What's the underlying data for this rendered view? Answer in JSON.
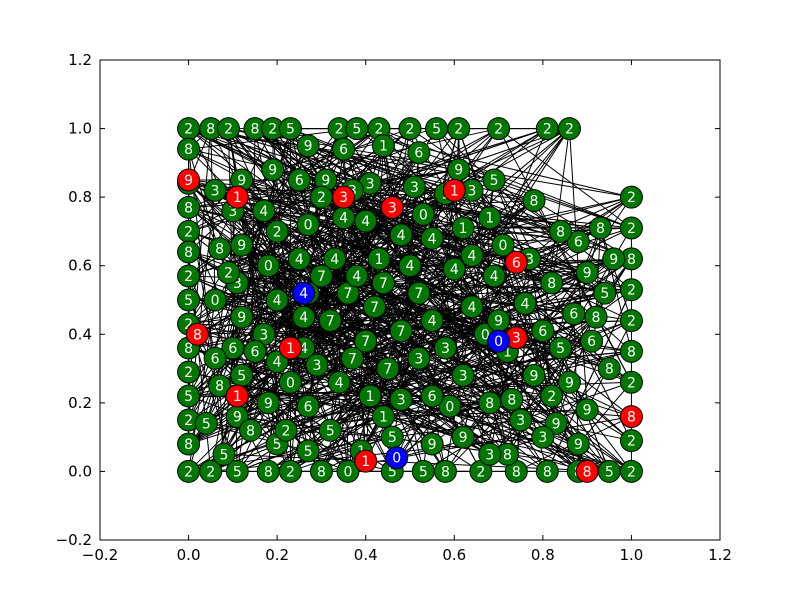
{
  "chart_data": {
    "type": "scatter",
    "subtype": "network-graph",
    "title": "",
    "xlabel": "",
    "ylabel": "",
    "xlim": [
      -0.2,
      1.2
    ],
    "ylim": [
      -0.2,
      1.2
    ],
    "x_ticks": [
      "−0.2",
      "0.0",
      "0.2",
      "0.4",
      "0.6",
      "0.8",
      "1.0",
      "1.2"
    ],
    "y_ticks": [
      "−0.2",
      "0.0",
      "0.2",
      "0.4",
      "0.6",
      "0.8",
      "1.0",
      "1.2"
    ],
    "grid": false,
    "legend": "none",
    "colors": {
      "node_default": "#007700",
      "node_red": "#ff0000",
      "node_blue": "#0000ff",
      "edge": "#000000",
      "label": "#ffffff"
    },
    "series": [
      {
        "color": "#007700",
        "points": [
          {
            "x": 0.0,
            "y": 1.0,
            "label": "2"
          },
          {
            "x": 0.05,
            "y": 1.0,
            "label": "8"
          },
          {
            "x": 0.09,
            "y": 1.0,
            "label": "2"
          },
          {
            "x": 0.15,
            "y": 1.0,
            "label": "8"
          },
          {
            "x": 0.19,
            "y": 1.0,
            "label": "2"
          },
          {
            "x": 0.23,
            "y": 1.0,
            "label": "5"
          },
          {
            "x": 0.34,
            "y": 1.0,
            "label": "2"
          },
          {
            "x": 0.38,
            "y": 1.0,
            "label": "5"
          },
          {
            "x": 0.43,
            "y": 1.0,
            "label": "2"
          },
          {
            "x": 0.5,
            "y": 1.0,
            "label": "2"
          },
          {
            "x": 0.56,
            "y": 1.0,
            "label": "5"
          },
          {
            "x": 0.61,
            "y": 1.0,
            "label": "2"
          },
          {
            "x": 0.7,
            "y": 1.0,
            "label": "2"
          },
          {
            "x": 0.81,
            "y": 1.0,
            "label": "2"
          },
          {
            "x": 0.86,
            "y": 1.0,
            "label": "2"
          },
          {
            "x": 0.0,
            "y": 0.94,
            "label": "8"
          },
          {
            "x": 0.0,
            "y": 0.84,
            "label": "5"
          },
          {
            "x": 0.0,
            "y": 0.77,
            "label": "8"
          },
          {
            "x": 0.0,
            "y": 0.7,
            "label": "2"
          },
          {
            "x": 0.0,
            "y": 0.64,
            "label": "8"
          },
          {
            "x": 0.0,
            "y": 0.57,
            "label": "2"
          },
          {
            "x": 0.0,
            "y": 0.5,
            "label": "5"
          },
          {
            "x": 0.0,
            "y": 0.43,
            "label": "2"
          },
          {
            "x": 0.0,
            "y": 0.36,
            "label": "8"
          },
          {
            "x": 0.0,
            "y": 0.29,
            "label": "2"
          },
          {
            "x": 0.0,
            "y": 0.22,
            "label": "5"
          },
          {
            "x": 0.0,
            "y": 0.15,
            "label": "2"
          },
          {
            "x": 0.0,
            "y": 0.08,
            "label": "8"
          },
          {
            "x": 0.0,
            "y": 0.0,
            "label": "2"
          },
          {
            "x": 0.05,
            "y": 0.0,
            "label": "2"
          },
          {
            "x": 0.11,
            "y": 0.0,
            "label": "5"
          },
          {
            "x": 0.18,
            "y": 0.0,
            "label": "8"
          },
          {
            "x": 0.23,
            "y": 0.0,
            "label": "2"
          },
          {
            "x": 0.3,
            "y": 0.0,
            "label": "8"
          },
          {
            "x": 0.36,
            "y": 0.0,
            "label": "0"
          },
          {
            "x": 0.46,
            "y": 0.0,
            "label": "5"
          },
          {
            "x": 0.53,
            "y": 0.0,
            "label": "5"
          },
          {
            "x": 0.58,
            "y": 0.0,
            "label": "8"
          },
          {
            "x": 0.66,
            "y": 0.0,
            "label": "2"
          },
          {
            "x": 0.74,
            "y": 0.0,
            "label": "8"
          },
          {
            "x": 0.81,
            "y": 0.0,
            "label": "8"
          },
          {
            "x": 0.88,
            "y": 0.0,
            "label": "8"
          },
          {
            "x": 0.95,
            "y": 0.0,
            "label": "5"
          },
          {
            "x": 1.0,
            "y": 0.0,
            "label": "2"
          },
          {
            "x": 1.0,
            "y": 0.8,
            "label": "2"
          },
          {
            "x": 1.0,
            "y": 0.71,
            "label": "2"
          },
          {
            "x": 1.0,
            "y": 0.62,
            "label": "8"
          },
          {
            "x": 1.0,
            "y": 0.53,
            "label": "2"
          },
          {
            "x": 1.0,
            "y": 0.44,
            "label": "2"
          },
          {
            "x": 1.0,
            "y": 0.35,
            "label": "8"
          },
          {
            "x": 1.0,
            "y": 0.26,
            "label": "2"
          },
          {
            "x": 1.0,
            "y": 0.09,
            "label": "2"
          },
          {
            "x": 0.93,
            "y": 0.71,
            "label": "8"
          },
          {
            "x": 0.88,
            "y": 0.67,
            "label": "6"
          },
          {
            "x": 0.84,
            "y": 0.7,
            "label": "8"
          },
          {
            "x": 0.9,
            "y": 0.58,
            "label": "9"
          },
          {
            "x": 0.94,
            "y": 0.52,
            "label": "5"
          },
          {
            "x": 0.87,
            "y": 0.46,
            "label": "6"
          },
          {
            "x": 0.91,
            "y": 0.38,
            "label": "6"
          },
          {
            "x": 0.95,
            "y": 0.3,
            "label": "8"
          },
          {
            "x": 0.86,
            "y": 0.26,
            "label": "9"
          },
          {
            "x": 0.9,
            "y": 0.18,
            "label": "9"
          },
          {
            "x": 0.83,
            "y": 0.14,
            "label": "9"
          },
          {
            "x": 0.88,
            "y": 0.08,
            "label": "9"
          },
          {
            "x": 0.78,
            "y": 0.79,
            "label": "8"
          },
          {
            "x": 0.77,
            "y": 0.62,
            "label": "3"
          },
          {
            "x": 0.82,
            "y": 0.55,
            "label": "8"
          },
          {
            "x": 0.76,
            "y": 0.49,
            "label": "4"
          },
          {
            "x": 0.8,
            "y": 0.41,
            "label": "6"
          },
          {
            "x": 0.72,
            "y": 0.35,
            "label": "1"
          },
          {
            "x": 0.78,
            "y": 0.28,
            "label": "9"
          },
          {
            "x": 0.73,
            "y": 0.21,
            "label": "8"
          },
          {
            "x": 0.8,
            "y": 0.1,
            "label": "3"
          },
          {
            "x": 0.72,
            "y": 0.05,
            "label": "8"
          },
          {
            "x": 0.69,
            "y": 0.85,
            "label": "5"
          },
          {
            "x": 0.68,
            "y": 0.74,
            "label": "1"
          },
          {
            "x": 0.69,
            "y": 0.57,
            "label": "4"
          },
          {
            "x": 0.64,
            "y": 0.48,
            "label": "4"
          },
          {
            "x": 0.67,
            "y": 0.4,
            "label": "0"
          },
          {
            "x": 0.68,
            "y": 0.2,
            "label": "8"
          },
          {
            "x": 0.68,
            "y": 0.05,
            "label": "3"
          },
          {
            "x": 0.61,
            "y": 0.88,
            "label": "9"
          },
          {
            "x": 0.62,
            "y": 0.71,
            "label": "1"
          },
          {
            "x": 0.6,
            "y": 0.59,
            "label": "4"
          },
          {
            "x": 0.55,
            "y": 0.68,
            "label": "4"
          },
          {
            "x": 0.58,
            "y": 0.36,
            "label": "3"
          },
          {
            "x": 0.62,
            "y": 0.28,
            "label": "3"
          },
          {
            "x": 0.59,
            "y": 0.19,
            "label": "0"
          },
          {
            "x": 0.62,
            "y": 0.1,
            "label": "9"
          },
          {
            "x": 0.52,
            "y": 0.93,
            "label": "6"
          },
          {
            "x": 0.51,
            "y": 0.83,
            "label": "3"
          },
          {
            "x": 0.53,
            "y": 0.75,
            "label": "0"
          },
          {
            "x": 0.48,
            "y": 0.69,
            "label": "4"
          },
          {
            "x": 0.52,
            "y": 0.52,
            "label": "7"
          },
          {
            "x": 0.48,
            "y": 0.41,
            "label": "7"
          },
          {
            "x": 0.52,
            "y": 0.33,
            "label": "3"
          },
          {
            "x": 0.48,
            "y": 0.21,
            "label": "3"
          },
          {
            "x": 0.46,
            "y": 0.1,
            "label": "5"
          },
          {
            "x": 0.44,
            "y": 0.95,
            "label": "1"
          },
          {
            "x": 0.41,
            "y": 0.84,
            "label": "3"
          },
          {
            "x": 0.4,
            "y": 0.73,
            "label": "4"
          },
          {
            "x": 0.43,
            "y": 0.62,
            "label": "1"
          },
          {
            "x": 0.42,
            "y": 0.48,
            "label": "7"
          },
          {
            "x": 0.4,
            "y": 0.38,
            "label": "7"
          },
          {
            "x": 0.41,
            "y": 0.22,
            "label": "1"
          },
          {
            "x": 0.39,
            "y": 0.06,
            "label": "1"
          },
          {
            "x": 0.35,
            "y": 0.94,
            "label": "6"
          },
          {
            "x": 0.31,
            "y": 0.85,
            "label": "9"
          },
          {
            "x": 0.35,
            "y": 0.74,
            "label": "4"
          },
          {
            "x": 0.33,
            "y": 0.62,
            "label": "4"
          },
          {
            "x": 0.36,
            "y": 0.52,
            "label": "7"
          },
          {
            "x": 0.32,
            "y": 0.44,
            "label": "7"
          },
          {
            "x": 0.34,
            "y": 0.26,
            "label": "4"
          },
          {
            "x": 0.32,
            "y": 0.12,
            "label": "5"
          },
          {
            "x": 0.27,
            "y": 0.95,
            "label": "9"
          },
          {
            "x": 0.25,
            "y": 0.85,
            "label": "6"
          },
          {
            "x": 0.27,
            "y": 0.72,
            "label": "0"
          },
          {
            "x": 0.25,
            "y": 0.62,
            "label": "4"
          },
          {
            "x": 0.27,
            "y": 0.52,
            "label": "1"
          },
          {
            "x": 0.26,
            "y": 0.45,
            "label": "4"
          },
          {
            "x": 0.26,
            "y": 0.36,
            "label": "4"
          },
          {
            "x": 0.27,
            "y": 0.19,
            "label": "6"
          },
          {
            "x": 0.27,
            "y": 0.06,
            "label": "5"
          },
          {
            "x": 0.19,
            "y": 0.88,
            "label": "9"
          },
          {
            "x": 0.17,
            "y": 0.76,
            "label": "4"
          },
          {
            "x": 0.2,
            "y": 0.7,
            "label": "2"
          },
          {
            "x": 0.18,
            "y": 0.6,
            "label": "0"
          },
          {
            "x": 0.2,
            "y": 0.5,
            "label": "4"
          },
          {
            "x": 0.17,
            "y": 0.4,
            "label": "3"
          },
          {
            "x": 0.2,
            "y": 0.32,
            "label": "4"
          },
          {
            "x": 0.18,
            "y": 0.2,
            "label": "9"
          },
          {
            "x": 0.2,
            "y": 0.08,
            "label": "5"
          },
          {
            "x": 0.12,
            "y": 0.85,
            "label": "9"
          },
          {
            "x": 0.1,
            "y": 0.76,
            "label": "3"
          },
          {
            "x": 0.12,
            "y": 0.66,
            "label": "9"
          },
          {
            "x": 0.11,
            "y": 0.55,
            "label": "3"
          },
          {
            "x": 0.12,
            "y": 0.45,
            "label": "9"
          },
          {
            "x": 0.1,
            "y": 0.36,
            "label": "6"
          },
          {
            "x": 0.12,
            "y": 0.28,
            "label": "5"
          },
          {
            "x": 0.11,
            "y": 0.16,
            "label": "9"
          },
          {
            "x": 0.08,
            "y": 0.05,
            "label": "5"
          },
          {
            "x": 0.06,
            "y": 0.82,
            "label": "3"
          },
          {
            "x": 0.07,
            "y": 0.65,
            "label": "8"
          },
          {
            "x": 0.06,
            "y": 0.5,
            "label": "0"
          },
          {
            "x": 0.06,
            "y": 0.33,
            "label": "6"
          },
          {
            "x": 0.04,
            "y": 0.14,
            "label": "5"
          },
          {
            "x": 0.07,
            "y": 0.25,
            "label": "8"
          },
          {
            "x": 0.09,
            "y": 0.58,
            "label": "2"
          },
          {
            "x": 0.15,
            "y": 0.35,
            "label": "6"
          },
          {
            "x": 0.14,
            "y": 0.12,
            "label": "8"
          },
          {
            "x": 0.23,
            "y": 0.26,
            "label": "0"
          },
          {
            "x": 0.22,
            "y": 0.12,
            "label": "2"
          },
          {
            "x": 0.29,
            "y": 0.31,
            "label": "3"
          },
          {
            "x": 0.3,
            "y": 0.57,
            "label": "7"
          },
          {
            "x": 0.3,
            "y": 0.8,
            "label": "2"
          },
          {
            "x": 0.37,
            "y": 0.33,
            "label": "7"
          },
          {
            "x": 0.38,
            "y": 0.57,
            "label": "4"
          },
          {
            "x": 0.37,
            "y": 0.82,
            "label": "3"
          },
          {
            "x": 0.44,
            "y": 0.55,
            "label": "7"
          },
          {
            "x": 0.45,
            "y": 0.3,
            "label": "7"
          },
          {
            "x": 0.44,
            "y": 0.16,
            "label": "1"
          },
          {
            "x": 0.5,
            "y": 0.6,
            "label": "4"
          },
          {
            "x": 0.55,
            "y": 0.44,
            "label": "4"
          },
          {
            "x": 0.55,
            "y": 0.22,
            "label": "6"
          },
          {
            "x": 0.55,
            "y": 0.08,
            "label": "9"
          },
          {
            "x": 0.58,
            "y": 0.81,
            "label": "1"
          },
          {
            "x": 0.64,
            "y": 0.82,
            "label": "3"
          },
          {
            "x": 0.64,
            "y": 0.63,
            "label": "4"
          },
          {
            "x": 0.71,
            "y": 0.66,
            "label": "0"
          },
          {
            "x": 0.7,
            "y": 0.44,
            "label": "9"
          },
          {
            "x": 0.75,
            "y": 0.15,
            "label": "3"
          },
          {
            "x": 0.84,
            "y": 0.36,
            "label": "5"
          },
          {
            "x": 0.82,
            "y": 0.22,
            "label": "2"
          },
          {
            "x": 0.92,
            "y": 0.45,
            "label": "8"
          },
          {
            "x": 0.96,
            "y": 0.62,
            "label": "9"
          }
        ]
      },
      {
        "color": "#ff0000",
        "points": [
          {
            "x": 0.0,
            "y": 0.85,
            "label": "9"
          },
          {
            "x": 0.11,
            "y": 0.8,
            "label": "1"
          },
          {
            "x": 0.35,
            "y": 0.8,
            "label": "3"
          },
          {
            "x": 0.46,
            "y": 0.77,
            "label": "3"
          },
          {
            "x": 0.6,
            "y": 0.82,
            "label": "1"
          },
          {
            "x": 0.74,
            "y": 0.61,
            "label": "6"
          },
          {
            "x": 0.74,
            "y": 0.39,
            "label": "3"
          },
          {
            "x": 0.23,
            "y": 0.36,
            "label": "1"
          },
          {
            "x": 0.11,
            "y": 0.22,
            "label": "1"
          },
          {
            "x": 0.02,
            "y": 0.4,
            "label": "8"
          },
          {
            "x": 1.0,
            "y": 0.16,
            "label": "8"
          },
          {
            "x": 0.4,
            "y": 0.03,
            "label": "1"
          },
          {
            "x": 0.9,
            "y": 0.0,
            "label": "8"
          }
        ]
      },
      {
        "color": "#0000ff",
        "points": [
          {
            "x": 0.26,
            "y": 0.52,
            "label": "4"
          },
          {
            "x": 0.7,
            "y": 0.38,
            "label": "0"
          },
          {
            "x": 0.47,
            "y": 0.04,
            "label": "0"
          }
        ]
      }
    ]
  }
}
